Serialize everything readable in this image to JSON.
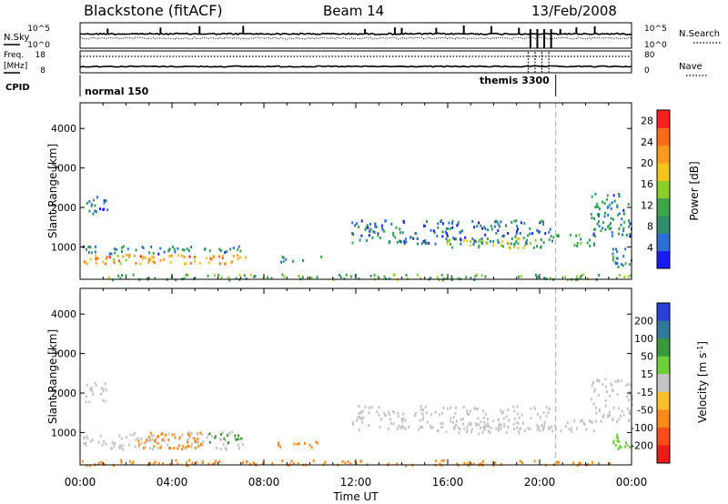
{
  "header": {
    "station": "Blackstone (fitACF)",
    "beam": "Beam 14",
    "date": "13/Feb/2008"
  },
  "parameter_panels": {
    "nsky_label": "N.Sky",
    "nsearch_label": "N.Search",
    "freq_label_1": "Freq.",
    "freq_label_2": "[MHz]",
    "nave_label": "Nave",
    "cpid_label": "CPID",
    "noise_ticks": [
      "10^5",
      "10^0"
    ],
    "freq_ticks": [
      "18",
      "8"
    ],
    "nave_ticks": [
      "80",
      "0"
    ],
    "cpid_modes": [
      {
        "label": "normal 150",
        "start_hour": 0,
        "end_hour": 20.7
      },
      {
        "label": "themis 3300",
        "start_hour": 20.7,
        "end_hour": 24
      }
    ]
  },
  "colors": {
    "power_scale": [
      "#1a1aff",
      "#2b6fd6",
      "#2f8f6a",
      "#3aa84a",
      "#8ccf2a",
      "#f3c51b",
      "#ff9a1a",
      "#ff6a1a",
      "#ff1f1f"
    ],
    "velocity_scale": [
      "#2a3fd8",
      "#2f7a9a",
      "#3a9a3a",
      "#6fcf3a",
      "#c4c4c4",
      "#ffc02a",
      "#ff8a1a",
      "#ff4a1a",
      "#ee1a1a"
    ],
    "reference_line": "#aaaaaa"
  },
  "chart_data": [
    {
      "type": "heatmap",
      "name": "power",
      "ylabel": "Slant Range [km]",
      "xlabel": "Time UT",
      "xticks": [
        "00:00",
        "04:00",
        "08:00",
        "12:00",
        "16:00",
        "20:00",
        "00:00"
      ],
      "xlim": [
        0,
        24
      ],
      "ylim": [
        180,
        4650
      ],
      "yticks": [
        1000,
        2000,
        3000,
        4000
      ],
      "colorbar_label": "Power [dB]",
      "colorbar_ticks": [
        4,
        8,
        12,
        16,
        20,
        24,
        28
      ],
      "colorbar_range": [
        0,
        30
      ],
      "reference_hour": 20.7,
      "scatter_regions": [
        {
          "t": [
            0.1,
            7.1
          ],
          "r": [
            850,
            1050
          ],
          "v": 8
        },
        {
          "t": [
            0.1,
            7.1
          ],
          "r": [
            600,
            830
          ],
          "v": 20
        },
        {
          "t": [
            0.2,
            7.2
          ],
          "r": [
            720,
            800
          ],
          "v": 24
        },
        {
          "t": [
            0.2,
            1.2
          ],
          "r": [
            1800,
            2300
          ],
          "v": 6
        },
        {
          "t": [
            8.5,
            10.5
          ],
          "r": [
            650,
            800
          ],
          "v": 8
        },
        {
          "t": [
            11.8,
            20.5
          ],
          "r": [
            1100,
            1700
          ],
          "v": 6
        },
        {
          "t": [
            15.5,
            20.5
          ],
          "r": [
            1000,
            1250
          ],
          "v": 14
        },
        {
          "t": [
            20.5,
            22.4
          ],
          "r": [
            1050,
            1350
          ],
          "v": 10
        },
        {
          "t": [
            22.2,
            24
          ],
          "r": [
            1300,
            2400
          ],
          "v": 8
        },
        {
          "t": [
            23,
            24
          ],
          "r": [
            500,
            1000
          ],
          "v": 8
        },
        {
          "t": [
            0,
            24
          ],
          "r": [
            190,
            330
          ],
          "v": 12
        }
      ]
    },
    {
      "type": "heatmap",
      "name": "velocity",
      "ylabel": "Slant Range [km]",
      "xlabel": "Time UT",
      "xticks": [
        "00:00",
        "04:00",
        "08:00",
        "12:00",
        "16:00",
        "20:00",
        "00:00"
      ],
      "xlim": [
        0,
        24
      ],
      "ylim": [
        180,
        4650
      ],
      "yticks": [
        1000,
        2000,
        3000,
        4000
      ],
      "colorbar_label": "Velocity [m s^-1]",
      "colorbar_ticks": [
        "200",
        "100",
        "50",
        "15",
        "-15",
        "-50",
        "-100",
        "-200"
      ],
      "reference_hour": 20.7,
      "scatter_regions": [
        {
          "t": [
            0.1,
            7.1
          ],
          "r": [
            850,
            1050
          ],
          "v": 0
        },
        {
          "t": [
            0.1,
            7.1
          ],
          "r": [
            600,
            830
          ],
          "v": 0
        },
        {
          "t": [
            2.5,
            5.5
          ],
          "r": [
            600,
            1050
          ],
          "v": -40
        },
        {
          "t": [
            5.5,
            7.1
          ],
          "r": [
            750,
            1000
          ],
          "v": 40
        },
        {
          "t": [
            0.2,
            1.2
          ],
          "r": [
            1800,
            2300
          ],
          "v": 0
        },
        {
          "t": [
            8.5,
            10.5
          ],
          "r": [
            650,
            800
          ],
          "v": -40
        },
        {
          "t": [
            11.8,
            20.5
          ],
          "r": [
            1100,
            1700
          ],
          "v": 0
        },
        {
          "t": [
            15.5,
            20.5
          ],
          "r": [
            1000,
            1250
          ],
          "v": 0
        },
        {
          "t": [
            20.5,
            22.4
          ],
          "r": [
            1050,
            1350
          ],
          "v": 0
        },
        {
          "t": [
            22.2,
            24
          ],
          "r": [
            1300,
            2400
          ],
          "v": 0
        },
        {
          "t": [
            23,
            24
          ],
          "r": [
            500,
            1000
          ],
          "v": 20
        },
        {
          "t": [
            0,
            24
          ],
          "r": [
            190,
            330
          ],
          "v": -40
        }
      ]
    }
  ]
}
